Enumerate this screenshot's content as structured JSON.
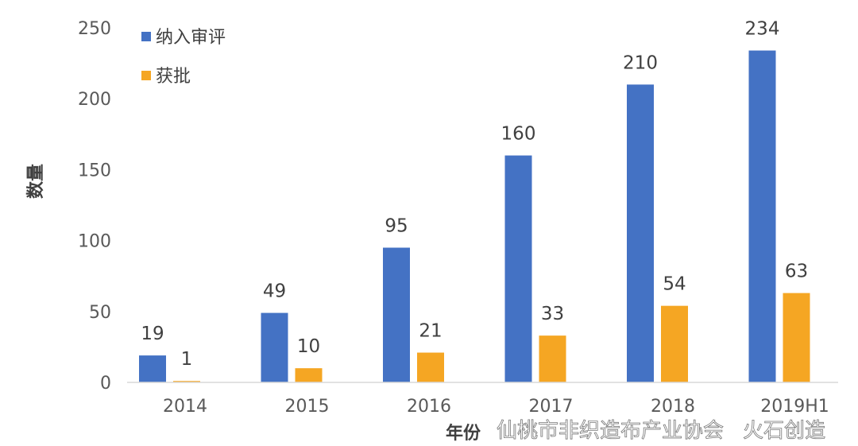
{
  "chart_data": {
    "type": "bar",
    "categories": [
      "2014",
      "2015",
      "2016",
      "2017",
      "2018",
      "2019H1"
    ],
    "series": [
      {
        "name": "纳入审评",
        "color": "#4472C4",
        "values": [
          19,
          49,
          95,
          160,
          210,
          234
        ]
      },
      {
        "name": "获批",
        "color": "#F5A623",
        "values": [
          1,
          10,
          21,
          33,
          54,
          63
        ]
      }
    ],
    "xlabel": "年份",
    "ylabel": "数量",
    "ylim": [
      0,
      250
    ],
    "yticks": [
      0,
      50,
      100,
      150,
      200,
      250
    ],
    "grid": false,
    "legend": "top-left"
  },
  "watermarks": [
    "仙桃市非织造布产业协会",
    "火石创造"
  ]
}
